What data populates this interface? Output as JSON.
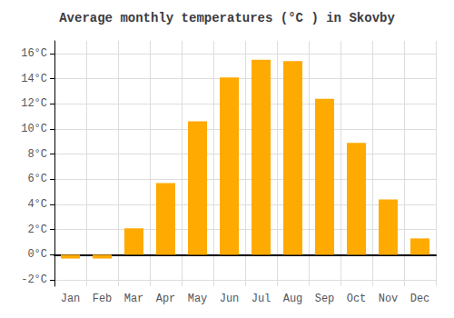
{
  "chart_data": {
    "type": "bar",
    "title": "Average monthly temperatures (°C ) in Skovby",
    "categories": [
      "Jan",
      "Feb",
      "Mar",
      "Apr",
      "May",
      "Jun",
      "Jul",
      "Aug",
      "Sep",
      "Oct",
      "Nov",
      "Dec"
    ],
    "values": [
      -0.3,
      -0.3,
      2.1,
      5.7,
      10.6,
      14.1,
      15.5,
      15.4,
      12.4,
      8.9,
      4.4,
      1.3
    ],
    "color": "#FFAA00",
    "ylim": [
      -2.5,
      17
    ],
    "yticks": [
      {
        "value": -2,
        "label": "-2°C"
      },
      {
        "value": 0,
        "label": "0°C"
      },
      {
        "value": 2,
        "label": "2°C"
      },
      {
        "value": 4,
        "label": "4°C"
      },
      {
        "value": 6,
        "label": "6°C"
      },
      {
        "value": 8,
        "label": "8°C"
      },
      {
        "value": 10,
        "label": "10°C"
      },
      {
        "value": 12,
        "label": "12°C"
      },
      {
        "value": 14,
        "label": "14°C"
      },
      {
        "value": 16,
        "label": "16°C"
      }
    ],
    "grid": true
  }
}
